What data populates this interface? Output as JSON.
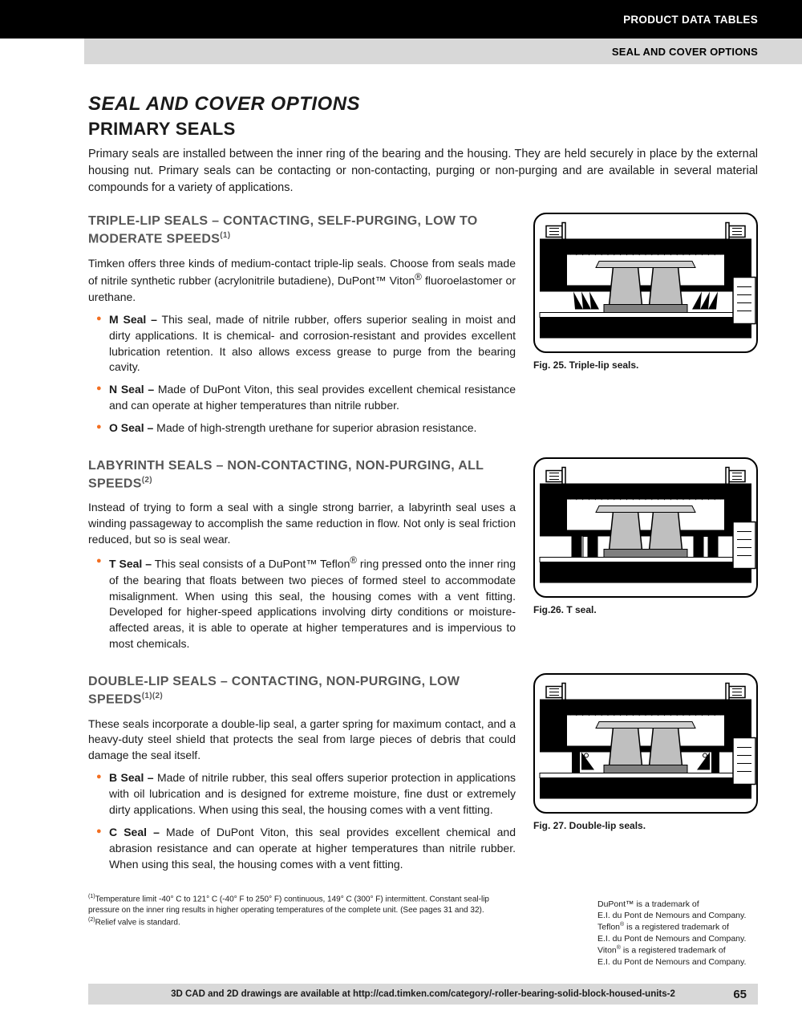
{
  "header": {
    "black_band": "PRODUCT DATA TABLES",
    "gray_band": "SEAL AND COVER OPTIONS"
  },
  "title": "SEAL AND COVER OPTIONS",
  "subtitle": "PRIMARY SEALS",
  "intro": "Primary seals are installed between the inner ring of the bearing and the housing. They are held securely in place by the external housing nut. Primary seals can be contacting or non-contacting, purging or non-purging and are available in several material compounds for a variety of applications.",
  "sections": [
    {
      "heading_html": "TRIPLE-LIP SEALS – CONTACTING, SELF-PURGING, LOW TO MODERATE SPEEDS<sup>(1)</sup>",
      "body_html": "Timken offers three kinds of medium-contact triple-lip seals. Choose from seals made of nitrile synthetic rubber (acrylonitrile butadiene), DuPont™ Viton<sup>®</sup> fluoroelastomer or urethane.",
      "bullets_html": [
        "<b>M Seal –</b> This seal, made of nitrile rubber, offers superior sealing in moist and dirty applications. It is chemical- and corrosion-resistant and provides excellent lubrication retention. It also allows excess grease to purge from the bearing cavity.",
        "<b>N Seal –</b> Made of DuPont Viton, this seal provides excellent chemical resistance and can operate at higher temperatures than nitrile rubber.",
        "<b>O Seal –</b> Made of high-strength urethane for superior abrasion resistance."
      ],
      "figure_caption": "Fig. 25. Triple-lip seals.",
      "diagram_type": "triple"
    },
    {
      "heading_html": "LABYRINTH SEALS – NON-CONTACTING, NON-PURGING, ALL SPEEDS<sup>(2)</sup>",
      "body_html": "Instead of trying to form a seal with a single strong barrier, a labyrinth seal uses a winding passageway to accomplish the same reduction in flow. Not only is seal friction reduced, but so is seal wear.",
      "bullets_html": [
        "<b>T Seal –</b> This seal consists of a DuPont™ Teflon<sup>®</sup> ring pressed onto the inner ring of the bearing that floats between two pieces of formed steel to accommodate misalignment. When using this seal, the housing comes with a vent fitting. Developed for higher-speed applications involving dirty conditions or moisture-affected areas, it is able to operate at higher temperatures and is impervious to most chemicals."
      ],
      "figure_caption": "Fig.26. T seal.",
      "diagram_type": "labyrinth"
    },
    {
      "heading_html": "DOUBLE-LIP SEALS – CONTACTING, NON-PURGING, LOW SPEEDS<sup>(1)(2)</sup>",
      "body_html": "These seals incorporate a double-lip seal, a garter spring for maximum contact, and a heavy-duty steel shield that protects the seal from large pieces of debris that could damage the seal itself.",
      "bullets_html": [
        "<b>B Seal –</b> Made of nitrile rubber, this seal offers superior protection in applications with oil lubrication and is designed for extreme moisture, fine dust or extremely dirty applications. When using this seal, the housing comes with a vent fitting.",
        "<b>C Seal –</b> Made of DuPont Viton, this seal provides excellent chemical and abrasion resistance and can operate at higher temperatures than nitrile rubber. When using this seal, the housing comes with a vent fitting."
      ],
      "figure_caption": "Fig. 27. Double-lip seals.",
      "diagram_type": "double"
    }
  ],
  "footnotes_html": "<sup>(1)</sup>Temperature limit -40° C to 121° C (-40° F to 250° F) continuous, 149° C (300° F) intermittent. Constant seal-lip pressure on the inner ring results in higher operating temperatures of the complete unit. (See pages 31 and 32).<br><sup>(2)</sup>Relief valve is standard.",
  "trademark_html": "DuPont™ is a trademark of<br>E.I. du Pont de Nemours and Company.<br>Teflon<sup>®</sup> is a registered trademark of<br>E.I. du Pont de Nemours and Company.<br>Viton<sup>®</sup> is a registered trademark of<br>E.I. du Pont de Nemours and Company.",
  "footer": "3D CAD and 2D drawings are available at http://cad.timken.com/category/-roller-bearing-solid-block-housed-units-2",
  "page_number": "65",
  "diagram_style": {
    "stroke": "#000000",
    "fill_dark": "#000000",
    "fill_mid": "#808080",
    "fill_light": "#bfbfbf",
    "fill_hatch": "#cfcfcf",
    "background": "#ffffff"
  }
}
